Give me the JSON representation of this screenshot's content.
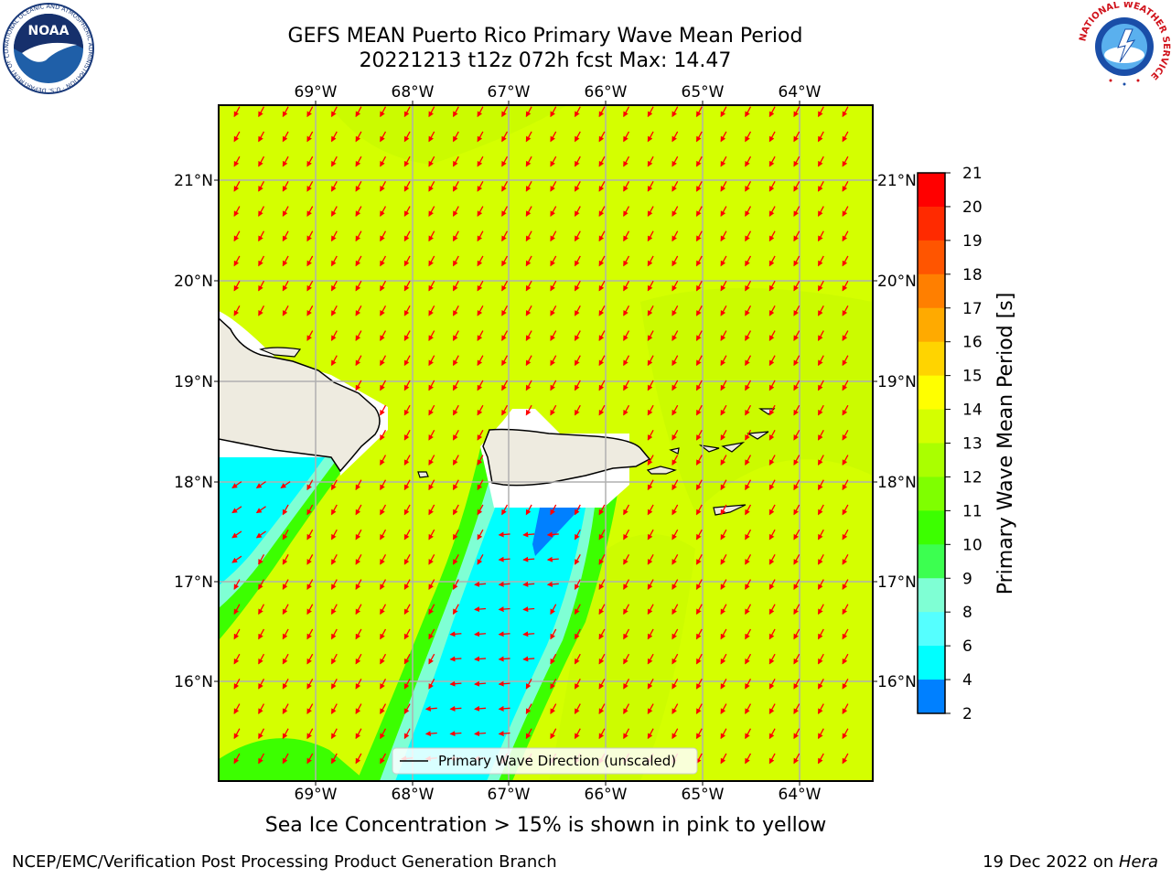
{
  "header": {
    "title_line1": "GEFS MEAN Puerto Rico Primary Wave Mean Period",
    "title_line2": "20221213 t12z 072h fcst   Max: 14.47"
  },
  "logos": {
    "left": {
      "name": "noaa-logo",
      "text": "NOAA",
      "ring_text": "NATIONAL OCEANIC AND ATMOSPHERIC ADMINISTRATION · U.S. DEPARTMENT OF COMMERCE"
    },
    "right": {
      "name": "nws-logo",
      "ring_text": "NATIONAL WEATHER SERVICE"
    }
  },
  "map": {
    "lon_ticks": [
      "69°W",
      "68°W",
      "67°W",
      "66°W",
      "65°W",
      "64°W"
    ],
    "lat_ticks": [
      "21°N",
      "20°N",
      "19°N",
      "18°N",
      "17°N",
      "16°N"
    ],
    "legend_label": "Primary Wave Direction (unscaled)",
    "field_color": "#d4ff00",
    "arrow_color": "#ff0000",
    "land_color": "#eeebe0"
  },
  "colorbar": {
    "label": "Primary Wave Mean Period [s]",
    "ticks": [
      "21",
      "20",
      "19",
      "18",
      "17",
      "16",
      "15",
      "14",
      "13",
      "12",
      "11",
      "10",
      "9",
      "8",
      "6",
      "4",
      "2"
    ],
    "colors_top_to_bottom": [
      "#ff0000",
      "#ff2a00",
      "#ff5500",
      "#ff7f00",
      "#ffaa00",
      "#ffd400",
      "#ffff00",
      "#d4ff00",
      "#aaff00",
      "#7fff00",
      "#3cff00",
      "#3cff50",
      "#7fffd4",
      "#55ffff",
      "#00ffff",
      "#0080ff",
      "#0000ff"
    ]
  },
  "footer": {
    "note": "Sea Ice Concentration > 15% is shown in pink to yellow",
    "left": "NCEP/EMC/Verification Post Processing Product Generation Branch",
    "right_prefix": "19 Dec 2022 on ",
    "right_host": "Hera"
  }
}
